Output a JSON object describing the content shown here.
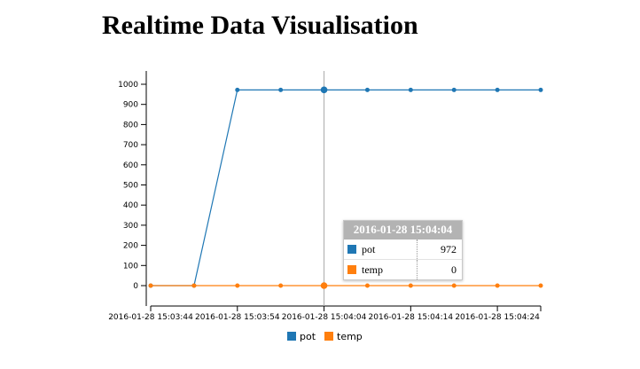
{
  "page": {
    "title": "Realtime Data Visualisation"
  },
  "colors": {
    "pot": "#1f77b4",
    "temp": "#ff7f0e",
    "axis": "#000000",
    "crosshair": "#aaaaaa"
  },
  "chart_data": {
    "type": "line",
    "title": "",
    "xlabel": "",
    "ylabel": "",
    "x": [
      "2016-01-28 15:03:44",
      "2016-01-28 15:03:49",
      "2016-01-28 15:03:54",
      "2016-01-28 15:03:59",
      "2016-01-28 15:04:04",
      "2016-01-28 15:04:09",
      "2016-01-28 15:04:14",
      "2016-01-28 15:04:19",
      "2016-01-28 15:04:24",
      "2016-01-28 15:04:29"
    ],
    "xlim": [
      "2016-01-28 15:03:44",
      "2016-01-28 15:04:29"
    ],
    "x_ticks": [
      "2016-01-28 15:03:44",
      "2016-01-28 15:03:54",
      "2016-01-28 15:04:04",
      "2016-01-28 15:04:14",
      "2016-01-28 15:04:24"
    ],
    "x_tick_labels": [
      "2016-01-28  15:03:44",
      "2016-01-28  15:03:54",
      "2016-01-28  15:04:04",
      "2016-01-28  15:04:14",
      "2016-01-28  15:04:24"
    ],
    "ylim": [
      0,
      1000
    ],
    "y_ticks": [
      0,
      100,
      200,
      300,
      400,
      500,
      600,
      700,
      800,
      900,
      1000
    ],
    "series": [
      {
        "name": "pot",
        "color": "#1f77b4",
        "values": [
          0,
          0,
          972,
          972,
          972,
          972,
          972,
          972,
          972,
          972
        ]
      },
      {
        "name": "temp",
        "color": "#ff7f0e",
        "values": [
          0,
          0,
          0,
          0,
          0,
          0,
          0,
          0,
          0,
          0
        ]
      }
    ],
    "grid": false,
    "legend": {
      "position": "bottom",
      "entries": [
        "pot",
        "temp"
      ]
    },
    "focus_index": 4
  },
  "tooltip": {
    "header": "2016-01-28 15:04:04",
    "rows": [
      {
        "name": "pot",
        "value": "972",
        "color": "#1f77b4"
      },
      {
        "name": "temp",
        "value": "0",
        "color": "#ff7f0e"
      }
    ]
  }
}
